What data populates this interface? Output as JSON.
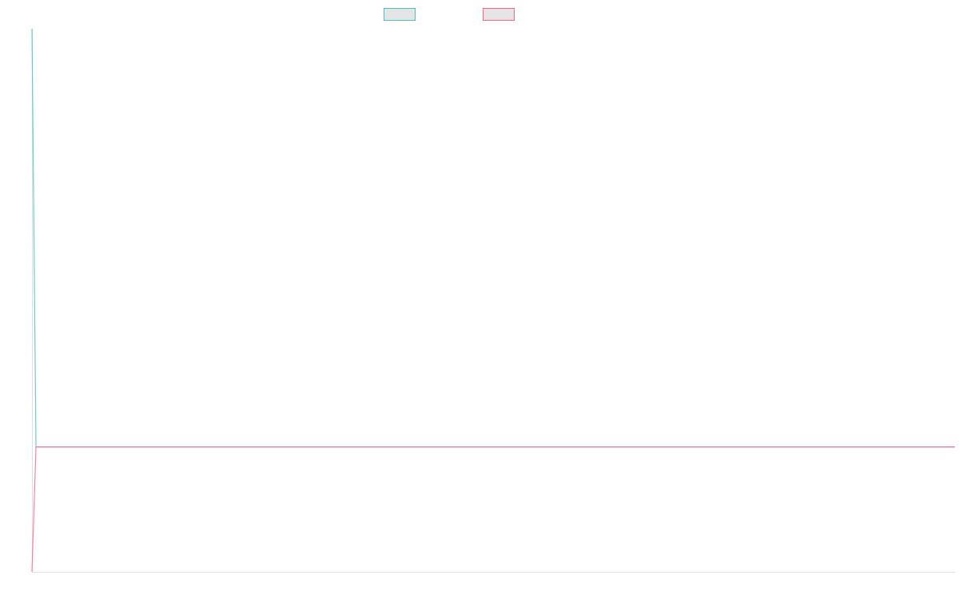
{
  "chart_data": {
    "type": "line",
    "title": "",
    "xlabel": "",
    "ylabel": "",
    "ylim": [
      0,
      100
    ],
    "grid": false,
    "legend": "top",
    "series": [
      {
        "name": "",
        "color": "#4bc0c0",
        "values": [
          100,
          23,
          23,
          23,
          23,
          23,
          23,
          23,
          23,
          23,
          23,
          23,
          23,
          23,
          23,
          23,
          23,
          23,
          23,
          23,
          23,
          23,
          23,
          23,
          23,
          23,
          23,
          23,
          23,
          23,
          23,
          23,
          23,
          23,
          23,
          23,
          23,
          23,
          23,
          23,
          23,
          23,
          23,
          23,
          23,
          23,
          23,
          23,
          23,
          23,
          23,
          23,
          23,
          23,
          23,
          23,
          23,
          23,
          23,
          23,
          23,
          23,
          23,
          23,
          23,
          23,
          23,
          23,
          23,
          23,
          23,
          23,
          23,
          23,
          23,
          23,
          23,
          23,
          23,
          23,
          23,
          23,
          23,
          23,
          23,
          23,
          23,
          23,
          23,
          23,
          23,
          23,
          23,
          23,
          23,
          23,
          23,
          23,
          23,
          23,
          23,
          23,
          23,
          23,
          23,
          23,
          23,
          23,
          23,
          23,
          23,
          23,
          23,
          23,
          23,
          23,
          23,
          23,
          23,
          23,
          23,
          23,
          23,
          23,
          23,
          23,
          23,
          23,
          23,
          23,
          23,
          23,
          23,
          23,
          23,
          23,
          23,
          23,
          23,
          23,
          23,
          23,
          23,
          23,
          23,
          23,
          23,
          23,
          23,
          23,
          23,
          23,
          23,
          23,
          23,
          23,
          23,
          23,
          23,
          23,
          23,
          23,
          23,
          23,
          23,
          23,
          23,
          23,
          23,
          23,
          23,
          23,
          23,
          23,
          23,
          23,
          23,
          23,
          23,
          23,
          23,
          23,
          23,
          23,
          23,
          23,
          23,
          23,
          23,
          23,
          23,
          23,
          23,
          23,
          23,
          23,
          23,
          23,
          23,
          23,
          23,
          23,
          23,
          23,
          23,
          23,
          23,
          23,
          23,
          23,
          23,
          23,
          23,
          23,
          23,
          23,
          23,
          23,
          23,
          23,
          23,
          23,
          23,
          23,
          23,
          23,
          23,
          23,
          23,
          23,
          23
        ]
      },
      {
        "name": "",
        "color": "#ff6384",
        "values": [
          0,
          23,
          23,
          23,
          23,
          23,
          23,
          23,
          23,
          23,
          23,
          23,
          23,
          23,
          23,
          23,
          23,
          23,
          23,
          23,
          23,
          23,
          23,
          23,
          23,
          23,
          23,
          23,
          23,
          23,
          23,
          23,
          23,
          23,
          23,
          23,
          23,
          23,
          23,
          23,
          23,
          23,
          23,
          23,
          23,
          23,
          23,
          23,
          23,
          23,
          23,
          23,
          23,
          23,
          23,
          23,
          23,
          23,
          23,
          23,
          23,
          23,
          23,
          23,
          23,
          23,
          23,
          23,
          23,
          23,
          23,
          23,
          23,
          23,
          23,
          23,
          23,
          23,
          23,
          23,
          23,
          23,
          23,
          23,
          23,
          23,
          23,
          23,
          23,
          23,
          23,
          23,
          23,
          23,
          23,
          23,
          23,
          23,
          23,
          23,
          23,
          23,
          23,
          23,
          23,
          23,
          23,
          23,
          23,
          23,
          23,
          23,
          23,
          23,
          23,
          23,
          23,
          23,
          23,
          23,
          23,
          23,
          23,
          23,
          23,
          23,
          23,
          23,
          23,
          23,
          23,
          23,
          23,
          23,
          23,
          23,
          23,
          23,
          23,
          23,
          23,
          23,
          23,
          23,
          23,
          23,
          23,
          23,
          23,
          23,
          23,
          23,
          23,
          23,
          23,
          23,
          23,
          23,
          23,
          23,
          23,
          23,
          23,
          23,
          23,
          23,
          23,
          23,
          23,
          23,
          23,
          23,
          23,
          23,
          23,
          23,
          23,
          23,
          23,
          23,
          23,
          23,
          23,
          23,
          23,
          23,
          23,
          23,
          23,
          23,
          23,
          23,
          23,
          23,
          23,
          23,
          23,
          23,
          23,
          23,
          23,
          23,
          23,
          23,
          23,
          23,
          23,
          23,
          23,
          23,
          23,
          23,
          23,
          23,
          23,
          23,
          23,
          23,
          23,
          23,
          23,
          23,
          23,
          23,
          23,
          23,
          23,
          23,
          23,
          23,
          23
        ]
      }
    ]
  }
}
